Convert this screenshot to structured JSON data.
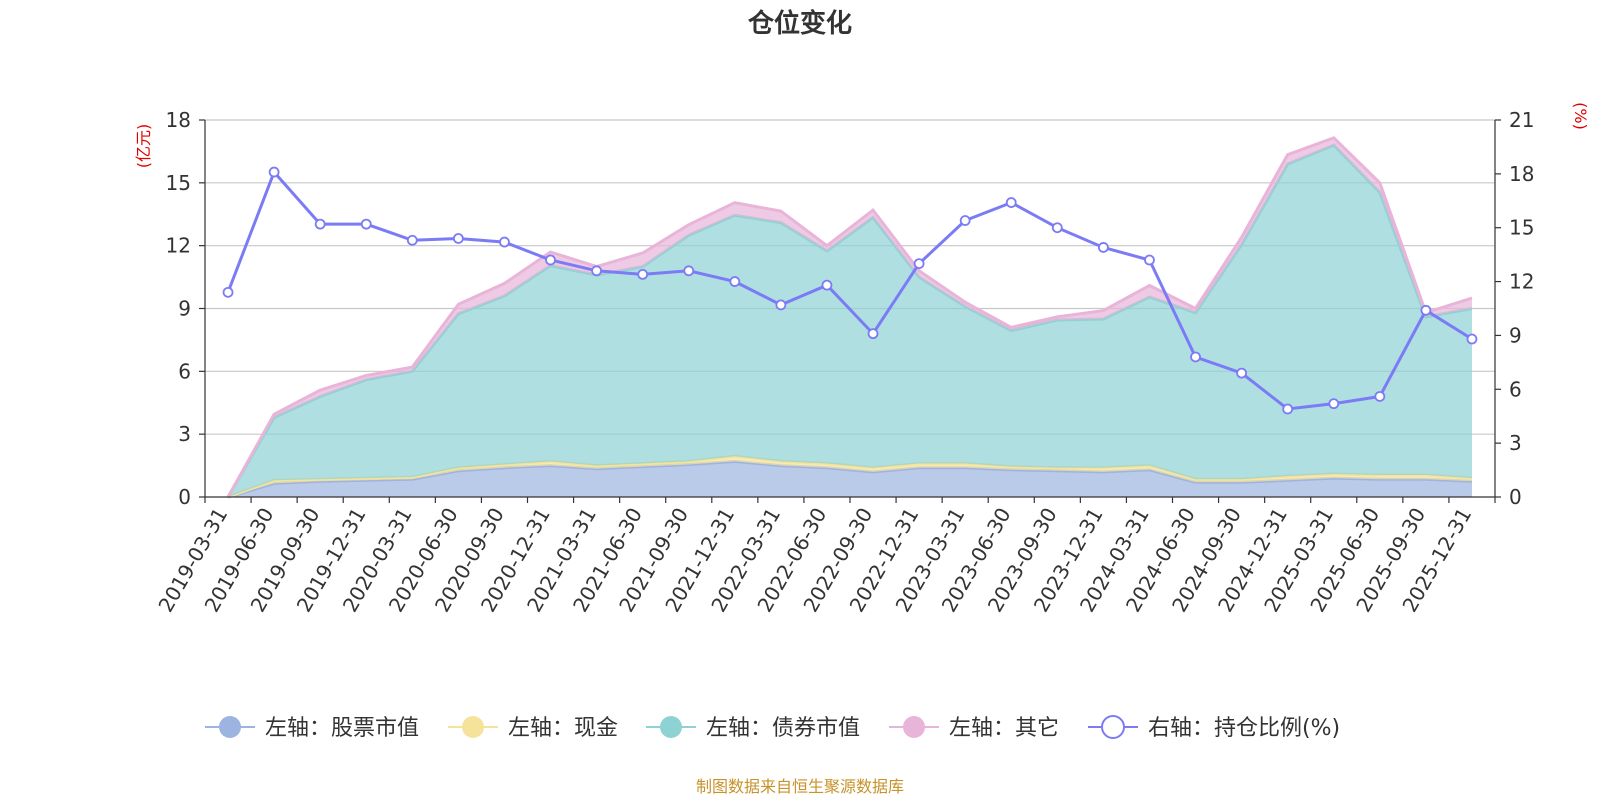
{
  "chart_data": {
    "type": "area",
    "title": "仓位变化",
    "left_axis_unit": "(亿元)",
    "right_axis_unit": "(%)",
    "left_ylim": [
      0,
      18
    ],
    "left_ticks": [
      "0",
      "3",
      "6",
      "9",
      "12",
      "15",
      "18"
    ],
    "right_ylim": [
      0,
      21
    ],
    "right_ticks": [
      "0",
      "3",
      "6",
      "9",
      "12",
      "15",
      "18",
      "21"
    ],
    "categories": [
      "2019-03-31",
      "2019-06-30",
      "2019-09-30",
      "2019-12-31",
      "2020-03-31",
      "2020-06-30",
      "2020-09-30",
      "2020-12-31",
      "2021-03-31",
      "2021-06-30",
      "2021-09-30",
      "2021-12-31",
      "2022-03-31",
      "2022-06-30",
      "2022-09-30",
      "2022-12-31",
      "2023-03-31",
      "2023-06-30",
      "2023-09-30",
      "2023-12-31",
      "2024-03-31",
      "2024-06-30",
      "2024-09-30",
      "2024-12-31",
      "2025-03-31",
      "2025-06-30",
      "2025-09-30",
      "2025-12-31"
    ],
    "series": [
      {
        "name": "左轴：股票市值",
        "axis": "left",
        "stack": true,
        "color": "#9db4e0",
        "values": [
          0.0,
          0.65,
          0.75,
          0.8,
          0.85,
          1.25,
          1.4,
          1.5,
          1.35,
          1.45,
          1.55,
          1.7,
          1.5,
          1.4,
          1.2,
          1.4,
          1.4,
          1.3,
          1.25,
          1.2,
          1.3,
          0.7,
          0.7,
          0.8,
          0.9,
          0.85,
          0.85,
          0.75
        ]
      },
      {
        "name": "左轴：现金",
        "axis": "left",
        "stack": true,
        "color": "#f5e39c",
        "values": [
          0.0,
          0.15,
          0.1,
          0.1,
          0.1,
          0.15,
          0.15,
          0.2,
          0.15,
          0.15,
          0.15,
          0.25,
          0.2,
          0.2,
          0.2,
          0.2,
          0.2,
          0.15,
          0.15,
          0.2,
          0.2,
          0.15,
          0.15,
          0.2,
          0.2,
          0.2,
          0.2,
          0.15
        ]
      },
      {
        "name": "左轴：债券市值",
        "axis": "left",
        "stack": true,
        "color": "#8fd2d4",
        "values": [
          0.0,
          3.0,
          3.95,
          4.7,
          5.05,
          7.35,
          8.05,
          9.35,
          9.1,
          9.4,
          10.8,
          11.5,
          11.4,
          10.15,
          11.95,
          8.9,
          7.5,
          6.5,
          7.05,
          7.1,
          8.05,
          7.95,
          11.2,
          14.9,
          15.7,
          13.5,
          7.55,
          8.1
        ]
      },
      {
        "name": "左轴：其它",
        "axis": "left",
        "stack": true,
        "color": "#e8b4d8",
        "values": [
          0.0,
          0.15,
          0.3,
          0.2,
          0.2,
          0.45,
          0.6,
          0.65,
          0.4,
          0.65,
          0.5,
          0.6,
          0.55,
          0.25,
          0.35,
          0.3,
          0.2,
          0.15,
          0.15,
          0.4,
          0.55,
          0.2,
          0.35,
          0.45,
          0.35,
          0.45,
          0.2,
          0.5
        ]
      },
      {
        "name": "右轴：持仓比例(%)",
        "axis": "right",
        "stack": false,
        "color": "#7b7bf5",
        "values": [
          11.4,
          18.1,
          15.2,
          15.2,
          14.3,
          14.4,
          14.2,
          13.2,
          12.6,
          12.4,
          12.6,
          12.0,
          10.7,
          11.8,
          9.1,
          13.0,
          15.4,
          16.4,
          15.0,
          13.9,
          13.2,
          7.8,
          6.9,
          4.9,
          5.2,
          5.6,
          10.4,
          8.8
        ]
      }
    ]
  },
  "legend": [
    {
      "label": "左轴：股票市值",
      "color": "#9db4e0",
      "symbol": "filled"
    },
    {
      "label": "左轴：现金",
      "color": "#f5e39c",
      "symbol": "filled"
    },
    {
      "label": "左轴：债券市值",
      "color": "#8fd2d4",
      "symbol": "filled"
    },
    {
      "label": "左轴：其它",
      "color": "#e8b4d8",
      "symbol": "filled"
    },
    {
      "label": "右轴：持仓比例(%)",
      "color": "#7b7bf5",
      "symbol": "hollow"
    }
  ],
  "source_note": "制图数据来自恒生聚源数据库"
}
